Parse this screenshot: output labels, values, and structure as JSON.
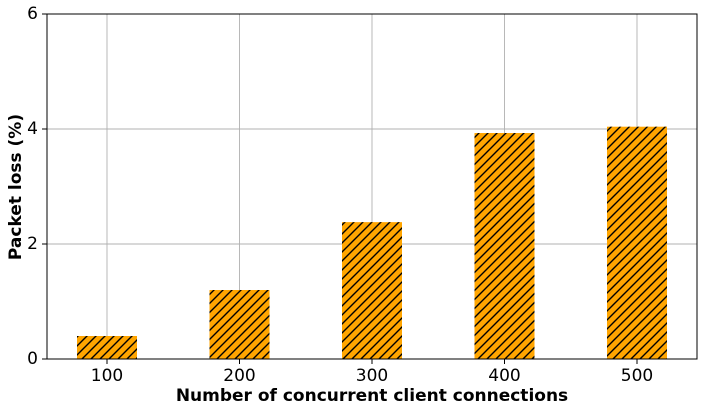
{
  "chart_data": {
    "type": "bar",
    "x_label": "Number of concurrent client connections",
    "y_label": "Packet loss (%)",
    "categories": [
      "100",
      "200",
      "300",
      "400",
      "500"
    ],
    "values": [
      0.4,
      1.2,
      2.38,
      3.93,
      4.04
    ],
    "color": "#ffa500",
    "hatch": "//",
    "ylim": [
      0,
      6
    ],
    "yticks": [
      0,
      2,
      4,
      6
    ],
    "grid": true
  }
}
